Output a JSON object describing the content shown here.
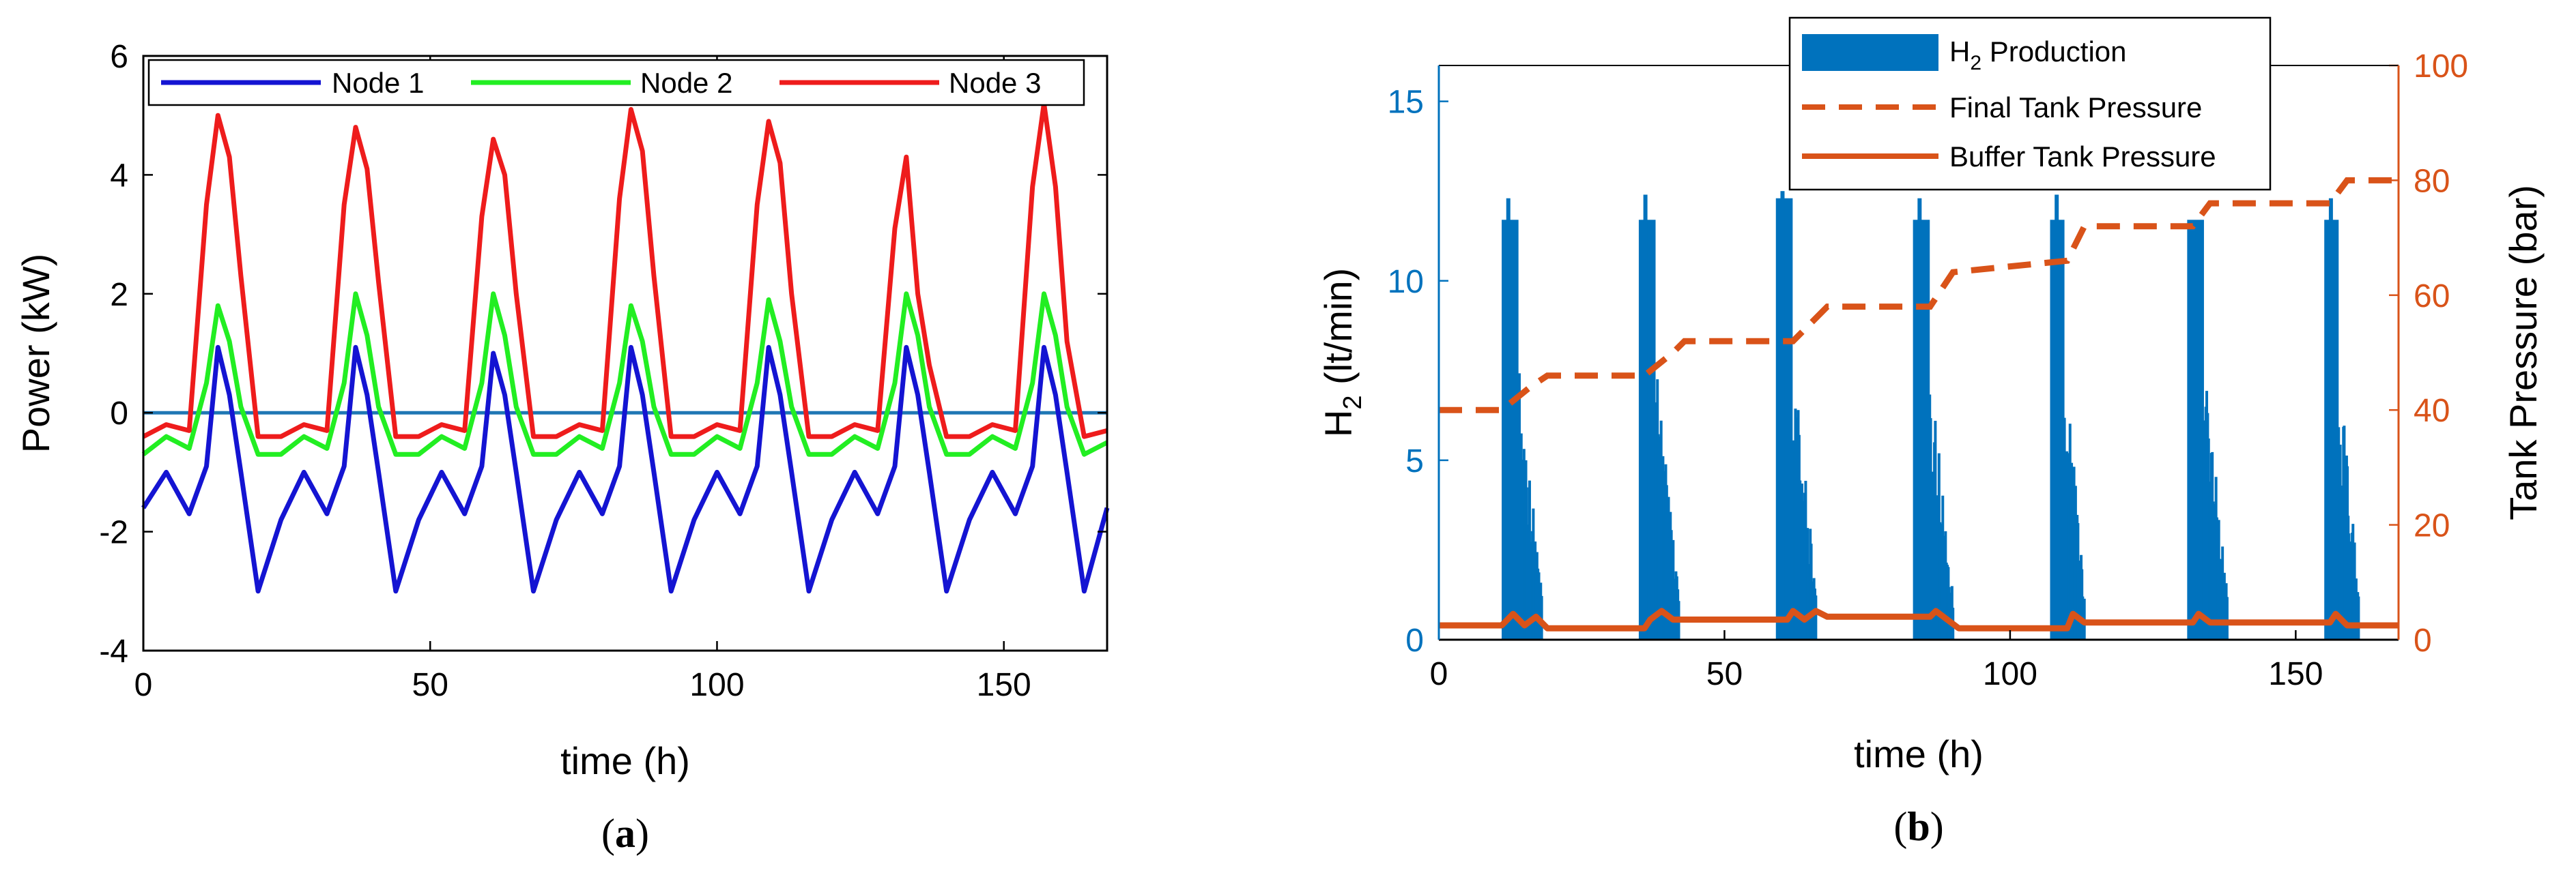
{
  "chart_data": [
    {
      "type": "line",
      "panel_label": {
        "open": "(",
        "letter": "a",
        "close": ")"
      },
      "xlabel": "time  (h)",
      "ylabel": "Power (kW)",
      "xlim": [
        0,
        168
      ],
      "ylim": [
        -4,
        6
      ],
      "xticks": [
        "0",
        "50",
        "100",
        "150"
      ],
      "yticks": [
        "-4",
        "-2",
        "0",
        "2",
        "4",
        "6"
      ],
      "zero_line": {
        "value": 0,
        "color": "#1f77b4"
      },
      "legend": [
        "Node 1",
        "Node 2",
        "Node 3"
      ],
      "series": [
        {
          "name": "Node 1",
          "color": "#1414d2",
          "x": [
            0,
            4,
            8,
            11,
            13,
            15,
            17,
            20,
            24,
            28,
            32,
            35,
            37,
            39,
            41,
            44,
            48,
            52,
            56,
            59,
            61,
            63,
            65,
            68,
            72,
            76,
            80,
            83,
            85,
            87,
            89,
            92,
            96,
            100,
            104,
            107,
            109,
            111,
            113,
            116,
            120,
            124,
            128,
            131,
            133,
            135,
            137,
            140,
            144,
            148,
            152,
            155,
            157,
            159,
            161,
            164,
            168
          ],
          "values": [
            -1.6,
            -1.0,
            -1.7,
            -0.9,
            1.1,
            0.3,
            -1.0,
            -3.0,
            -1.8,
            -1.0,
            -1.7,
            -0.9,
            1.1,
            0.3,
            -1.0,
            -3.0,
            -1.8,
            -1.0,
            -1.7,
            -0.9,
            1.0,
            0.3,
            -1.0,
            -3.0,
            -1.8,
            -1.0,
            -1.7,
            -0.9,
            1.1,
            0.3,
            -1.0,
            -3.0,
            -1.8,
            -1.0,
            -1.7,
            -0.9,
            1.1,
            0.3,
            -1.0,
            -3.0,
            -1.8,
            -1.0,
            -1.7,
            -0.9,
            1.1,
            0.3,
            -1.0,
            -3.0,
            -1.8,
            -1.0,
            -1.7,
            -0.9,
            1.1,
            0.3,
            -1.0,
            -3.0,
            -1.6
          ]
        },
        {
          "name": "Node 2",
          "color": "#22ee22",
          "x": [
            0,
            4,
            8,
            11,
            13,
            15,
            17,
            20,
            24,
            28,
            32,
            35,
            37,
            39,
            41,
            44,
            48,
            52,
            56,
            59,
            61,
            63,
            65,
            68,
            72,
            76,
            80,
            83,
            85,
            87,
            89,
            92,
            96,
            100,
            104,
            107,
            109,
            111,
            113,
            116,
            120,
            124,
            128,
            131,
            133,
            135,
            137,
            140,
            144,
            148,
            152,
            155,
            157,
            159,
            161,
            164,
            168
          ],
          "values": [
            -0.7,
            -0.4,
            -0.6,
            0.5,
            1.8,
            1.2,
            0.1,
            -0.7,
            -0.7,
            -0.4,
            -0.6,
            0.5,
            2.0,
            1.3,
            0.1,
            -0.7,
            -0.7,
            -0.4,
            -0.6,
            0.5,
            2.0,
            1.3,
            0.1,
            -0.7,
            -0.7,
            -0.4,
            -0.6,
            0.5,
            1.8,
            1.2,
            0.1,
            -0.7,
            -0.7,
            -0.4,
            -0.6,
            0.5,
            1.9,
            1.2,
            0.1,
            -0.7,
            -0.7,
            -0.4,
            -0.6,
            0.5,
            2.0,
            1.3,
            0.1,
            -0.7,
            -0.7,
            -0.4,
            -0.6,
            0.5,
            2.0,
            1.3,
            0.1,
            -0.7,
            -0.5
          ]
        },
        {
          "name": "Node 3",
          "color": "#ee1c1c",
          "x": [
            0,
            4,
            8,
            11,
            13,
            15,
            17,
            20,
            24,
            28,
            32,
            35,
            37,
            39,
            41,
            44,
            48,
            52,
            56,
            59,
            61,
            63,
            65,
            68,
            72,
            76,
            80,
            83,
            85,
            87,
            89,
            92,
            96,
            100,
            104,
            107,
            109,
            111,
            113,
            116,
            120,
            124,
            128,
            131,
            133,
            135,
            137,
            140,
            144,
            148,
            152,
            155,
            157,
            159,
            161,
            164,
            168
          ],
          "values": [
            -0.4,
            -0.2,
            -0.3,
            3.5,
            5.0,
            4.3,
            2.3,
            -0.4,
            -0.4,
            -0.2,
            -0.3,
            3.5,
            4.8,
            4.1,
            2.2,
            -0.4,
            -0.4,
            -0.2,
            -0.3,
            3.3,
            4.6,
            4.0,
            2.0,
            -0.4,
            -0.4,
            -0.2,
            -0.3,
            3.6,
            5.1,
            4.4,
            2.3,
            -0.4,
            -0.4,
            -0.2,
            -0.3,
            3.5,
            4.9,
            4.2,
            2.0,
            -0.4,
            -0.4,
            -0.2,
            -0.3,
            3.1,
            4.3,
            2.0,
            0.8,
            -0.4,
            -0.4,
            -0.2,
            -0.3,
            3.8,
            5.2,
            3.8,
            1.2,
            -0.4,
            -0.3
          ]
        }
      ]
    },
    {
      "type": "bar",
      "panel_label": {
        "open": "(",
        "letter": "b",
        "close": ")"
      },
      "xlabel": "time (h)",
      "ylabel_left": {
        "main": "H",
        "sub": "2",
        "rest": "  (lt/min)"
      },
      "ylabel_right": "Tank Pressure (bar)",
      "xlim": [
        0,
        168
      ],
      "ylim_left": [
        0,
        16
      ],
      "ylim_right": [
        0,
        100
      ],
      "xticks": [
        "0",
        "50",
        "100",
        "150"
      ],
      "yticks_left": [
        "0",
        "5",
        "10",
        "15"
      ],
      "yticks_right": [
        "0",
        "20",
        "40",
        "60",
        "80",
        "100"
      ],
      "colors": {
        "left_axis": "#0072bd",
        "right_axis": "#d95319"
      },
      "legend": [
        {
          "main": "H",
          "sub": "2",
          "rest": " Production"
        },
        {
          "text": "Final Tank Pressure"
        },
        {
          "text": "Buffer Tank Pressure"
        }
      ],
      "series": [
        {
          "name": "H2 Production",
          "axis": "left",
          "color": "#0072bd",
          "x_start": [
            11,
            35,
            59,
            83,
            107,
            131,
            155
          ],
          "x_end": [
            18,
            42,
            66,
            90,
            113,
            138,
            161
          ],
          "plateau": [
            11.7,
            11.7,
            12.3,
            11.7,
            11.7,
            11.7,
            11.7
          ],
          "spike": [
            12.3,
            12.4,
            12.5,
            12.3,
            12.4,
            9.5,
            12.3
          ]
        },
        {
          "name": "Final Tank Pressure",
          "axis": "right",
          "color": "#d95319",
          "x": [
            0,
            11,
            16,
            19,
            36,
            41,
            43,
            62,
            68,
            86,
            90,
            110,
            113,
            132,
            135,
            156,
            159,
            168
          ],
          "values": [
            40,
            40,
            44,
            46,
            46,
            50,
            52,
            52,
            58,
            58,
            64,
            66,
            72,
            72,
            76,
            76,
            80,
            80
          ]
        },
        {
          "name": "Buffer Tank Pressure",
          "axis": "right",
          "color": "#d95319",
          "x": [
            0,
            11,
            13,
            15,
            17,
            19,
            36,
            37,
            39,
            41,
            43,
            61,
            62,
            64,
            66,
            68,
            86,
            87,
            89,
            91,
            110,
            111,
            113,
            115,
            132,
            133,
            135,
            137,
            156,
            157,
            159,
            161,
            168
          ],
          "values": [
            2.5,
            2.5,
            4.5,
            2.5,
            4.0,
            2.0,
            2.0,
            3.5,
            5.0,
            3.5,
            3.5,
            3.5,
            5.0,
            3.5,
            5.0,
            4.0,
            4.0,
            5.0,
            3.5,
            2.0,
            2.0,
            4.5,
            3.0,
            3.0,
            3.0,
            4.5,
            3.0,
            3.0,
            3.0,
            4.5,
            2.5,
            2.5,
            2.5
          ]
        }
      ]
    }
  ]
}
